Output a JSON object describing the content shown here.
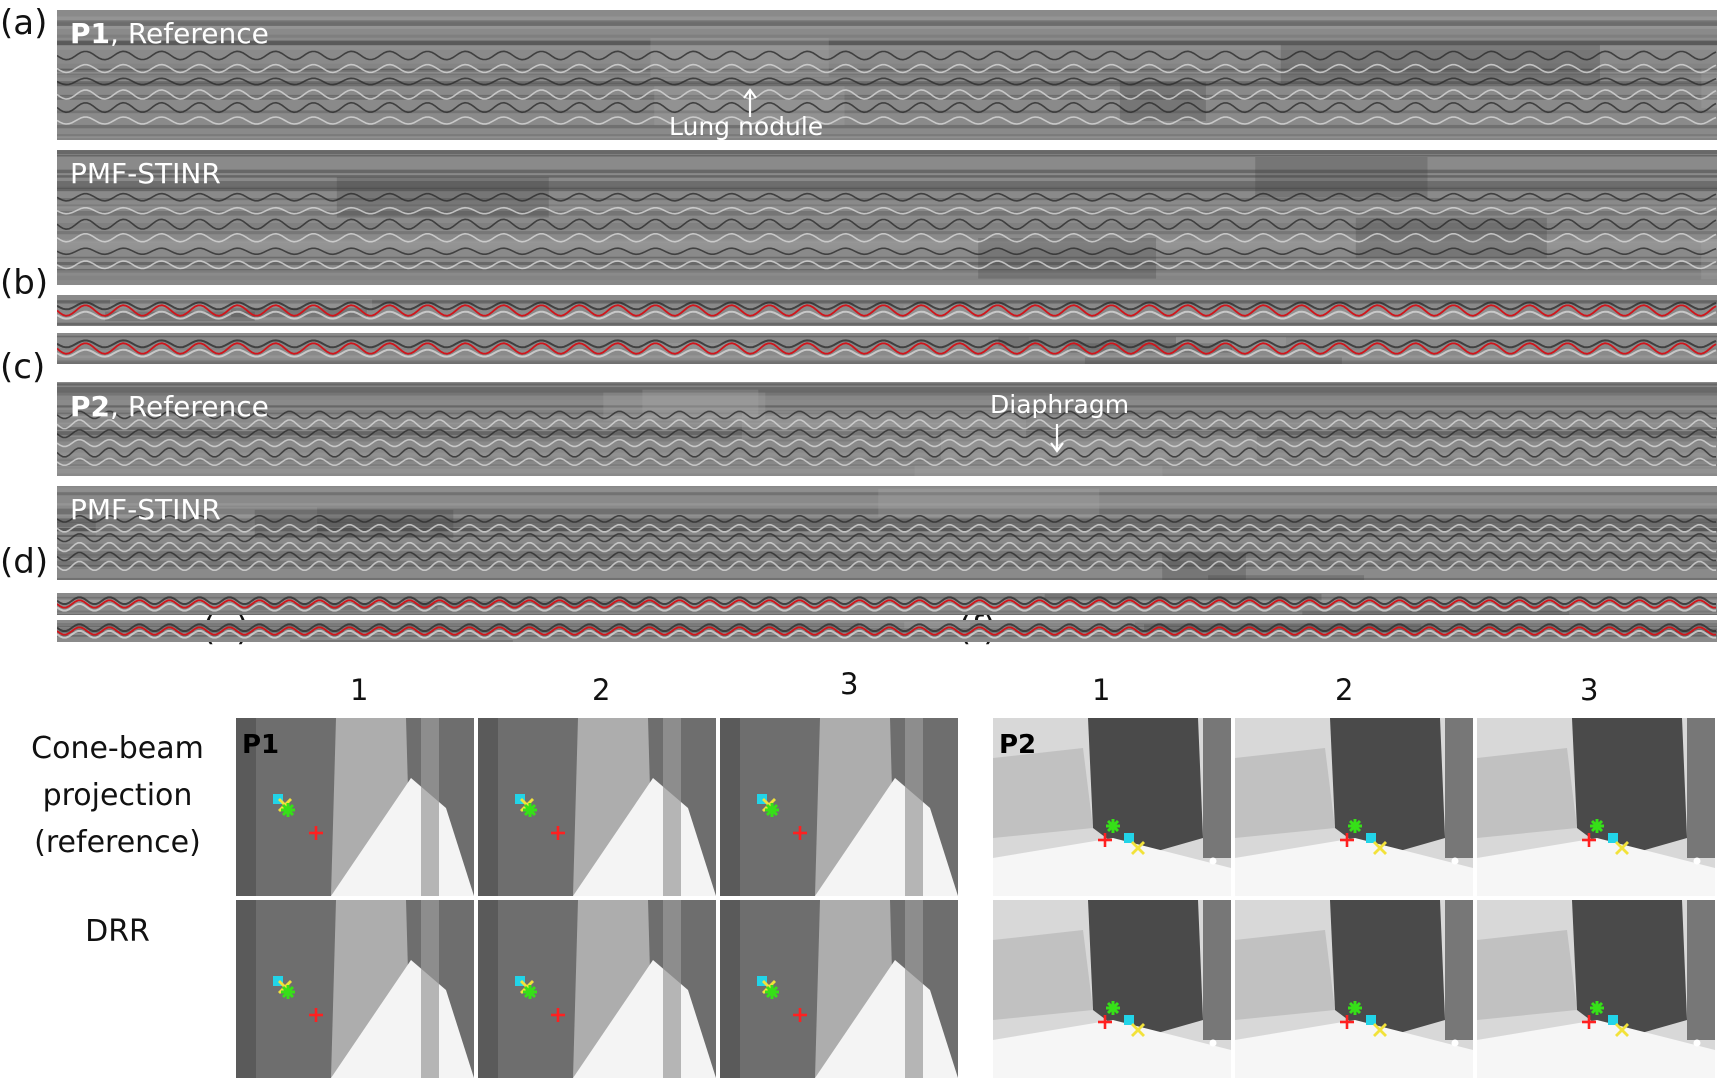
{
  "panels": {
    "a": "(a)",
    "b": "(b)",
    "c": "(c)",
    "d": "(d)",
    "e": "(e)",
    "f": "(f)"
  },
  "patients": {
    "p1": "P1",
    "p2": "P2"
  },
  "strip_titles": {
    "reference_suffix": ", Reference",
    "method": "PMF-STINR"
  },
  "annotations": {
    "lung_nodule": "Lung nodule",
    "diaphragm": "Diaphragm"
  },
  "columns": [
    "1",
    "2",
    "3"
  ],
  "row_labels": {
    "projection": [
      "Cone-beam",
      "projection",
      "(reference)"
    ],
    "drr": "DRR"
  },
  "colors": {
    "trace_red": "#d0161c",
    "marker_red": "#ff2020",
    "marker_cyan": "#22d4e8",
    "marker_yellow": "#f2e23a",
    "marker_green": "#36e018"
  }
}
